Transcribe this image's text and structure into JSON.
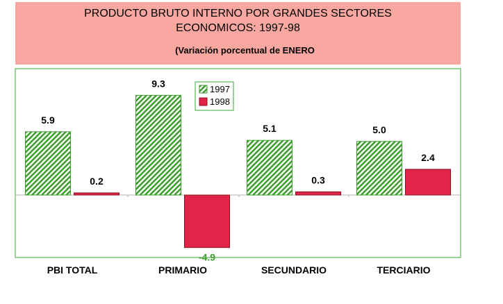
{
  "header": {
    "title_line1": "PRODUCTO BRUTO INTERNO POR GRANDES SECTORES",
    "title_line2": "ECONOMICOS: 1997-98",
    "subtitle": "(Variación porcentual de ENERO"
  },
  "colors": {
    "series_1997": "#3a9c2a",
    "series_1998": "#e0244a",
    "frame": "#33aa33",
    "title_bg": "#f8a8a0"
  },
  "chart_data": {
    "type": "bar",
    "categories": [
      "PBI TOTAL",
      "PRIMARIO",
      "SECUNDARIO",
      "TERCIARIO"
    ],
    "series": [
      {
        "name": "1997",
        "values": [
          5.9,
          9.3,
          5.1,
          5.0
        ],
        "labels": [
          "5.9",
          "9.3",
          "5.1",
          "5.0"
        ]
      },
      {
        "name": "1998",
        "values": [
          0.2,
          -4.9,
          0.3,
          2.4
        ],
        "labels": [
          "0.2",
          "-4.9",
          "0.3",
          "2.4"
        ]
      }
    ],
    "legend_position": "top-center",
    "grid": false
  }
}
